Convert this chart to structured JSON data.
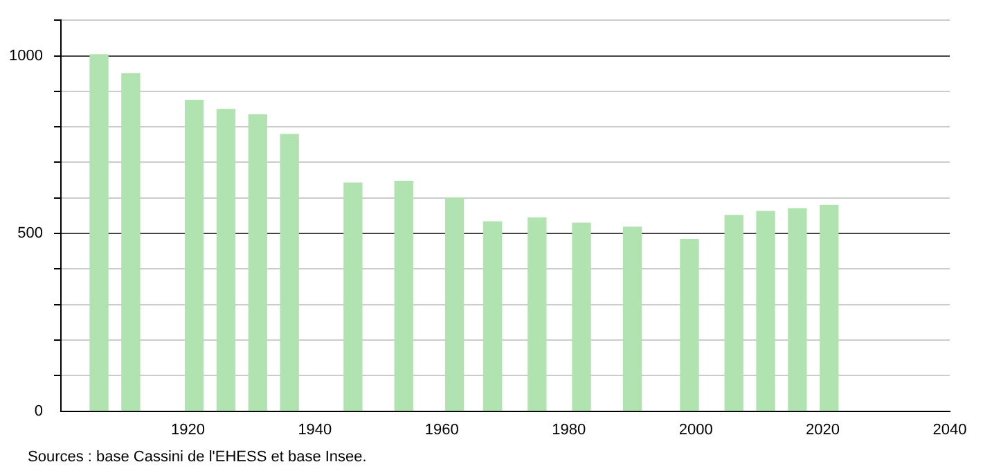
{
  "chart_data": {
    "type": "bar",
    "x": [
      1906,
      1911,
      1921,
      1926,
      1931,
      1936,
      1946,
      1954,
      1962,
      1968,
      1975,
      1982,
      1990,
      1999,
      2006,
      2011,
      2016,
      2021
    ],
    "values": [
      1003,
      950,
      875,
      849,
      834,
      779,
      642,
      647,
      599,
      533,
      544,
      529,
      518,
      483,
      551,
      562,
      570,
      579
    ],
    "color": "#b0e3b0",
    "xlim": [
      1900,
      2040
    ],
    "xticks": [
      1920,
      1940,
      1960,
      1980,
      2000,
      2020,
      2040
    ],
    "ylim": [
      0,
      1100
    ],
    "yticks": [
      0,
      {
        "value": 100,
        "label": null
      },
      {
        "value": 200,
        "label": null
      },
      {
        "value": 300,
        "label": null
      },
      {
        "value": 400,
        "label": null
      },
      500,
      {
        "value": 600,
        "label": null
      },
      {
        "value": 700,
        "label": null
      },
      {
        "value": 800,
        "label": null
      },
      {
        "value": 900,
        "label": null
      },
      1000,
      {
        "value": 1100,
        "label": null
      }
    ],
    "grid": "y",
    "legend": false,
    "annotations": [
      "Sources : base Cassini de l'EHESS et base Insee."
    ]
  }
}
